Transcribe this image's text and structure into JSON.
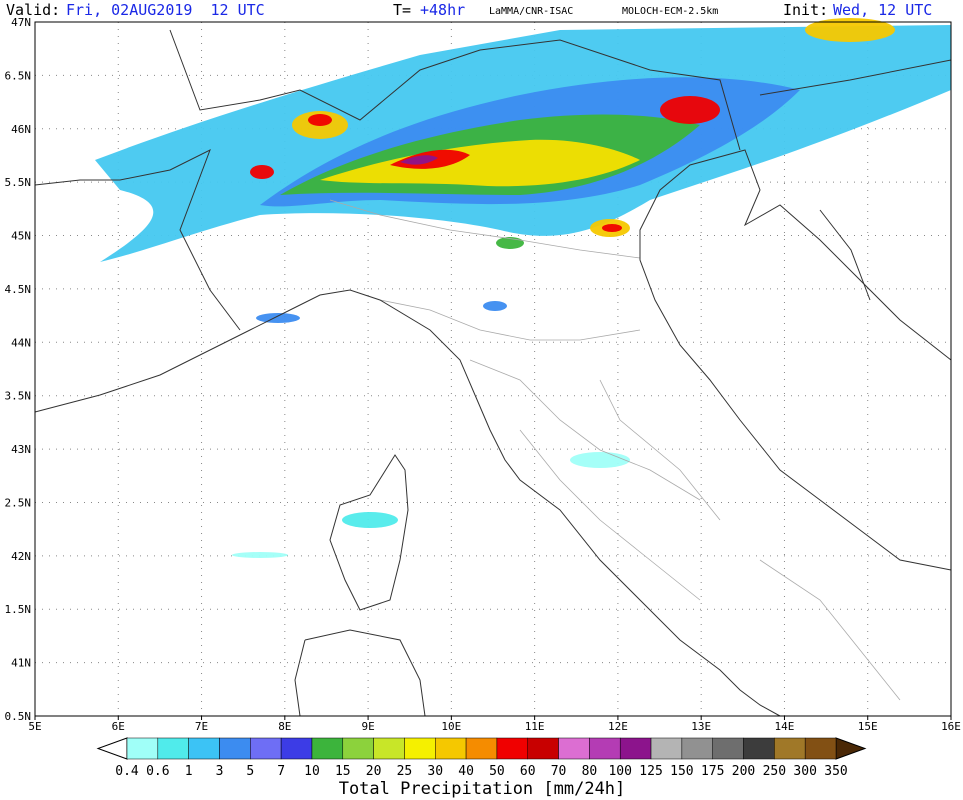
{
  "header": {
    "valid_label": "Valid:",
    "valid_time": "Fri, 02AUG2019  12 UTC",
    "lead_label": "T=",
    "lead": "+48hr",
    "center": "LaMMA/CNR-ISAC",
    "model": "MOLOCH-ECM-2.5km",
    "init_label": "Init:",
    "init_time": "Wed, 12 UTC"
  },
  "axes": {
    "lon_labels": [
      "5E",
      "6E",
      "7E",
      "8E",
      "9E",
      "10E",
      "11E",
      "12E",
      "13E",
      "14E",
      "15E",
      "16E"
    ],
    "lat_labels": [
      "47N",
      "6.5N",
      "46N",
      "5.5N",
      "45N",
      "4.5N",
      "44N",
      "3.5N",
      "43N",
      "2.5N",
      "42N",
      "1.5N",
      "41N",
      "0.5N"
    ]
  },
  "colorbar": {
    "title": "Total Precipitation [mm/24h]",
    "labels": [
      "0.4",
      "0.6",
      "1",
      "3",
      "5",
      "7",
      "10",
      "15",
      "20",
      "25",
      "30",
      "40",
      "50",
      "60",
      "70",
      "80",
      "100",
      "125",
      "150",
      "175",
      "200",
      "250",
      "300",
      "350"
    ],
    "under_color": "#ffffff",
    "over_color": "#4a2806",
    "colors": [
      "#a0fff8",
      "#50ebeb",
      "#3cc3f5",
      "#3c8cf0",
      "#6e6ef5",
      "#3c3ce6",
      "#3cb43c",
      "#8cd23c",
      "#c8e628",
      "#f5f000",
      "#f5c800",
      "#f58c00",
      "#f00000",
      "#c80000",
      "#dc6ed2",
      "#b43cb4",
      "#8c148c",
      "#b4b4b4",
      "#919191",
      "#6e6e6e",
      "#3c3c3c",
      "#a07828",
      "#825014",
      "#64340a"
    ]
  }
}
